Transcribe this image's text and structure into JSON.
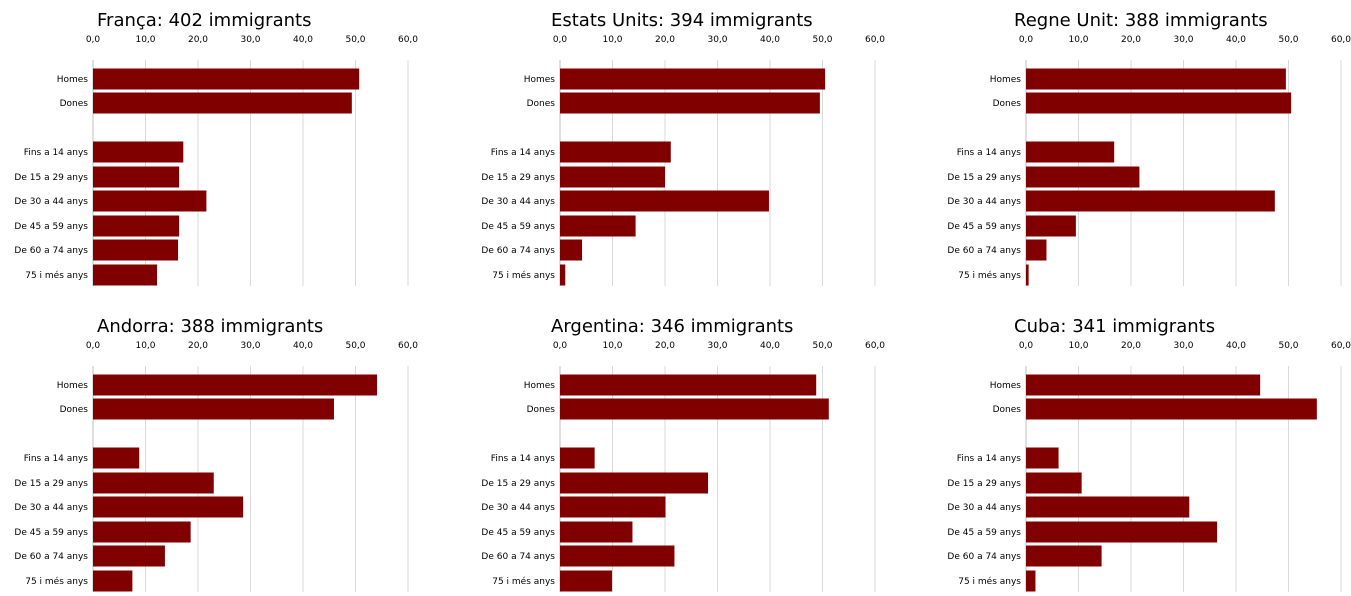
{
  "colors": {
    "bar": "#800000",
    "grid": "#d9d9d9"
  },
  "chart_data": [
    {
      "type": "bar",
      "orientation": "horizontal",
      "title": "França: 402 immigrants",
      "xticks": [
        "0,0",
        "10,0",
        "20,0",
        "30,0",
        "40,0",
        "50,0",
        "60,0"
      ],
      "xlim": [
        0,
        60
      ],
      "categories": [
        "Homes",
        "Dones",
        "Fins a 14 anys",
        "De 15 a 29 anys",
        "De 30 a 44 anys",
        "De 45 a 59 anys",
        "De 60 a 74 anys",
        "75 i més anys"
      ],
      "values": [
        50.7,
        49.3,
        17.2,
        16.4,
        21.6,
        16.4,
        16.2,
        12.2
      ]
    },
    {
      "type": "bar",
      "orientation": "horizontal",
      "title": "Estats Units: 394 immigrants",
      "xticks": [
        "0,0",
        "10,0",
        "20,0",
        "30,0",
        "40,0",
        "50,0",
        "60,0"
      ],
      "xlim": [
        0,
        60
      ],
      "categories": [
        "Homes",
        "Dones",
        "Fins a 14 anys",
        "De 15 a 29 anys",
        "De 30 a 44 anys",
        "De 45 a 59 anys",
        "De 60 a 74 anys",
        "75 i més anys"
      ],
      "values": [
        50.5,
        49.5,
        21.1,
        20.0,
        39.8,
        14.4,
        4.2,
        1.0
      ]
    },
    {
      "type": "bar",
      "orientation": "horizontal",
      "title": "Regne Unit: 388 immigrants",
      "xticks": [
        "0,0",
        "10,0",
        "20,0",
        "30,0",
        "40,0",
        "50,0",
        "60,0"
      ],
      "xlim": [
        0,
        60
      ],
      "categories": [
        "Homes",
        "Dones",
        "Fins a 14 anys",
        "De 15 a 29 anys",
        "De 30 a 44 anys",
        "De 45 a 59 anys",
        "De 60 a 74 anys",
        "75 i més anys"
      ],
      "values": [
        49.5,
        50.5,
        16.8,
        21.6,
        47.4,
        9.5,
        3.9,
        0.5
      ]
    },
    {
      "type": "bar",
      "orientation": "horizontal",
      "title": "Andorra: 388 immigrants",
      "xticks": [
        "0,0",
        "10,0",
        "20,0",
        "30,0",
        "40,0",
        "50,0",
        "60,0"
      ],
      "xlim": [
        0,
        60
      ],
      "categories": [
        "Homes",
        "Dones",
        "Fins a 14 anys",
        "De 15 a 29 anys",
        "De 30 a 44 anys",
        "De 45 a 59 anys",
        "De 60 a 74 anys",
        "75 i més anys"
      ],
      "values": [
        54.1,
        45.9,
        8.8,
        23.0,
        28.6,
        18.6,
        13.7,
        7.5
      ]
    },
    {
      "type": "bar",
      "orientation": "horizontal",
      "title": "Argentina: 346 immigrants",
      "xticks": [
        "0,0",
        "10,0",
        "20,0",
        "30,0",
        "40,0",
        "50,0",
        "60,0"
      ],
      "xlim": [
        0,
        60
      ],
      "categories": [
        "Homes",
        "Dones",
        "Fins a 14 anys",
        "De 15 a 29 anys",
        "De 30 a 44 anys",
        "De 45 a 59 anys",
        "De 60 a 74 anys",
        "75 i més anys"
      ],
      "values": [
        48.8,
        51.2,
        6.6,
        28.2,
        20.1,
        13.8,
        21.8,
        9.9
      ]
    },
    {
      "type": "bar",
      "orientation": "horizontal",
      "title": "Cuba: 341 immigrants",
      "xticks": [
        "0,0",
        "10,0",
        "20,0",
        "30,0",
        "40,0",
        "50,0",
        "60,0"
      ],
      "xlim": [
        0,
        60
      ],
      "categories": [
        "Homes",
        "Dones",
        "Fins a 14 anys",
        "De 15 a 29 anys",
        "De 30 a 44 anys",
        "De 45 a 59 anys",
        "De 60 a 74 anys",
        "75 i més anys"
      ],
      "values": [
        44.6,
        55.4,
        6.2,
        10.6,
        31.1,
        36.4,
        14.4,
        1.8
      ]
    }
  ]
}
